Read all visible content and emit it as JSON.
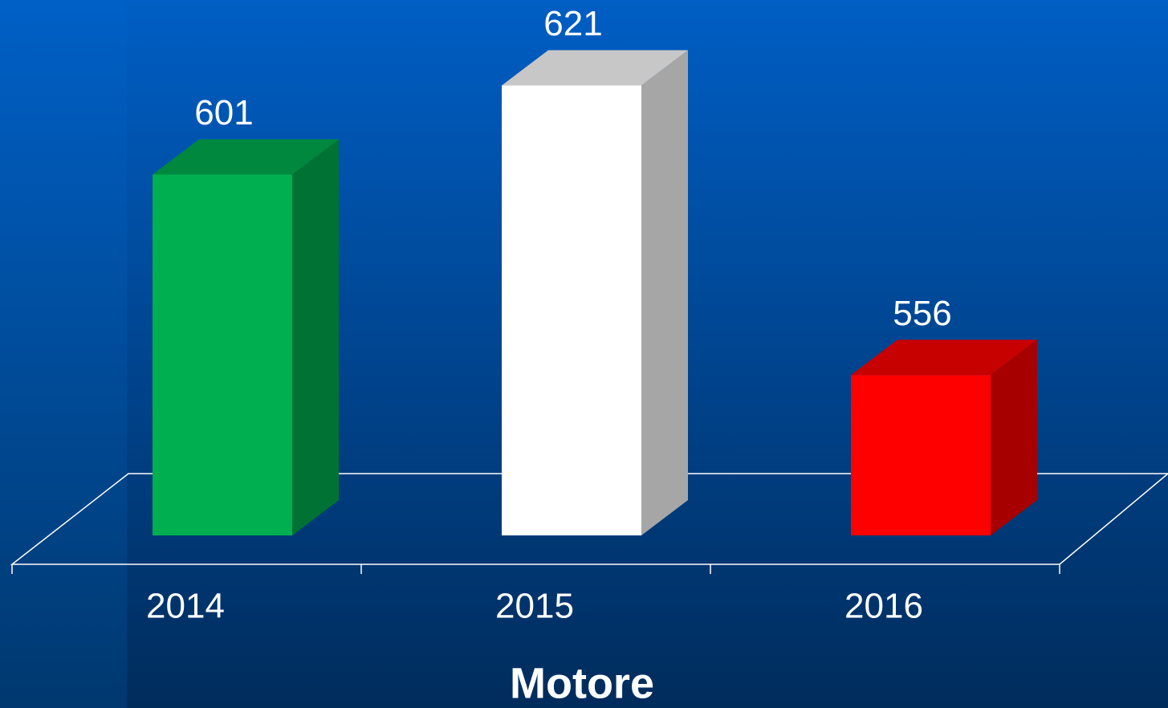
{
  "chart_data": {
    "type": "bar3d",
    "x_label": "Motore",
    "categories": [
      "2014",
      "2015",
      "2016"
    ],
    "values": [
      601,
      621,
      556
    ],
    "colors": [
      "#00b050",
      "#ffffff",
      "#ff0000"
    ],
    "ylim": [
      520,
      640
    ]
  }
}
